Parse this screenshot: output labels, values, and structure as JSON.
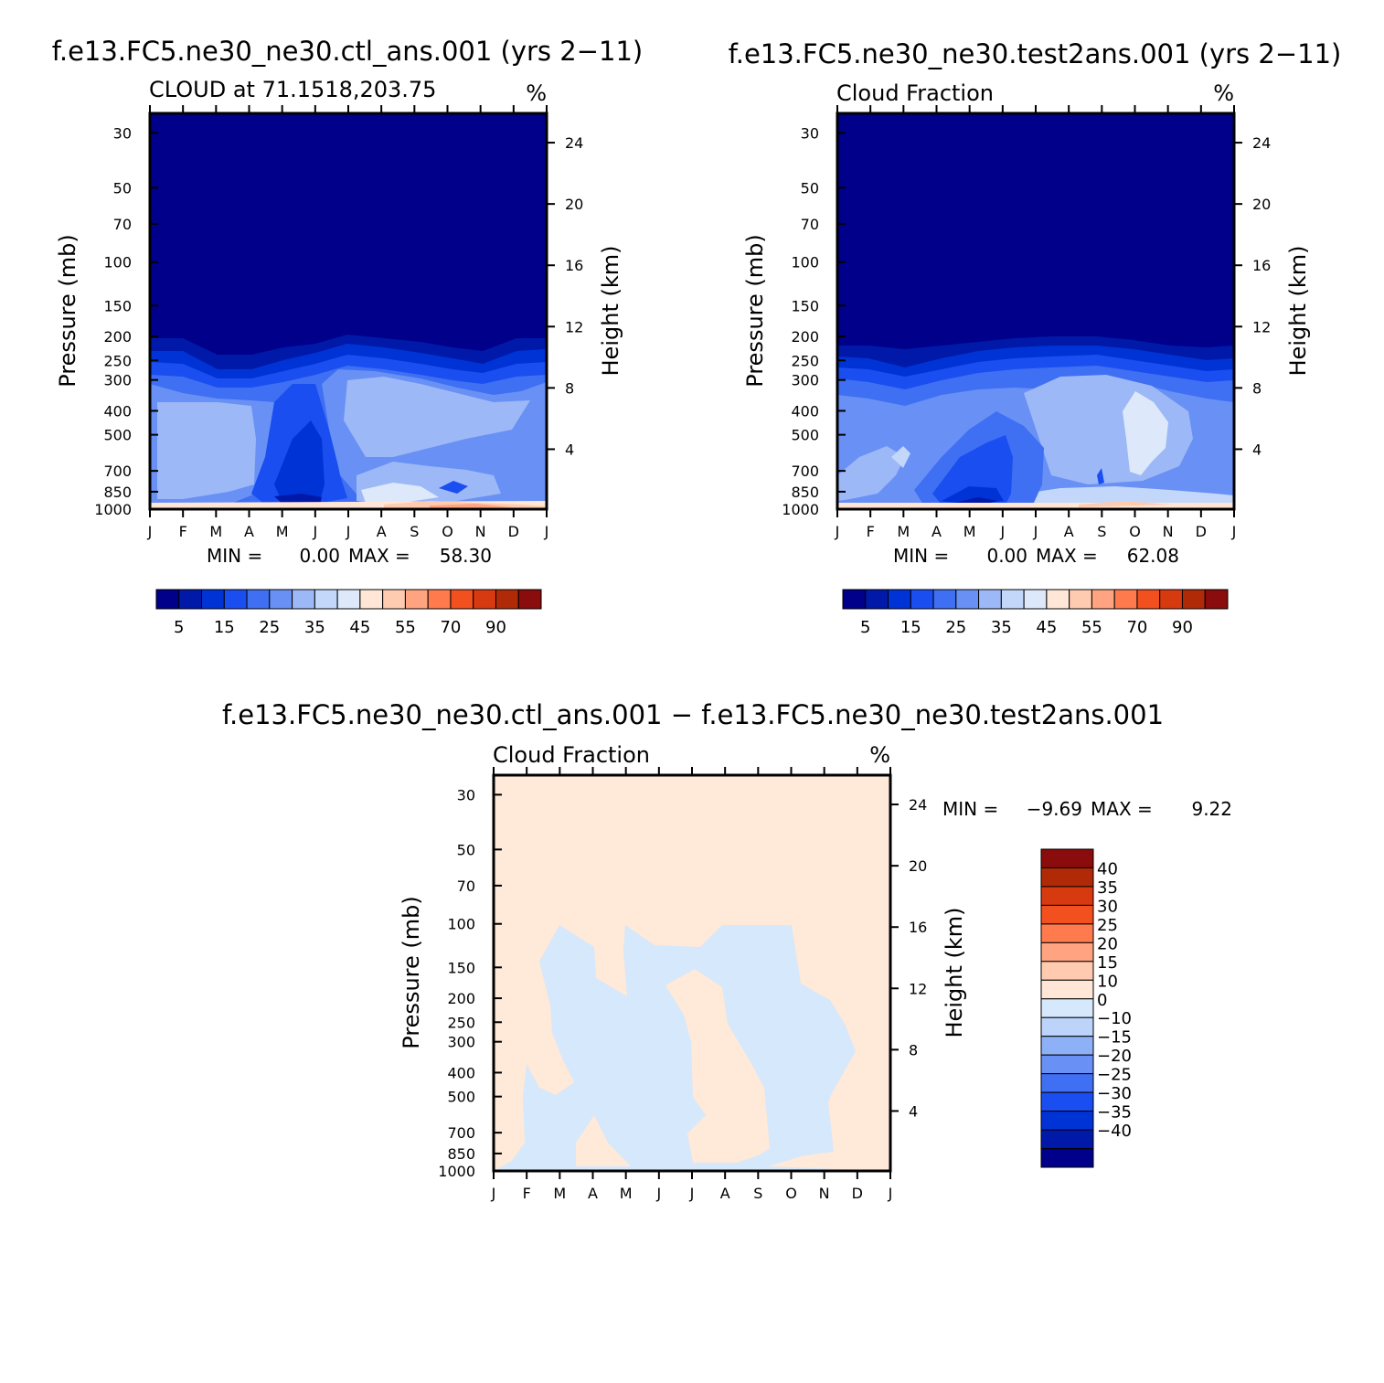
{
  "chart_data": [
    {
      "type": "heatmap",
      "title": "f.e13.FC5.ne30_ne30.ctl_ans.001 (yrs 2−11)",
      "subtitle_left": "CLOUD at 71.1518,203.75",
      "units": "%",
      "xlabel": "",
      "ylabel": "Pressure (mb)",
      "ylabel_right": "Height (km)",
      "x_ticks": [
        "J",
        "F",
        "M",
        "A",
        "M",
        "J",
        "J",
        "A",
        "S",
        "O",
        "N",
        "D",
        "J"
      ],
      "y_ticks": [
        "30",
        "50",
        "70",
        "100",
        "150",
        "200",
        "250",
        "300",
        "400",
        "500",
        "700",
        "850",
        "1000"
      ],
      "y_ticks_right": [
        "24",
        "20",
        "16",
        "12",
        "8",
        "4"
      ],
      "min_label": "MIN =",
      "min_value": "0.00",
      "max_label": "MAX =",
      "max_value": "58.30",
      "colorbar_labels": [
        "5",
        "15",
        "25",
        "35",
        "45",
        "55",
        "70",
        "90"
      ],
      "colorbar_colors": [
        "#00008a",
        "#0019a8",
        "#0033d6",
        "#1a4ef0",
        "#3f6ff2",
        "#6890f5",
        "#9db8f7",
        "#c2d7fa",
        "#dde9fb",
        "#ffe6d6",
        "#ffcbb0",
        "#ffa380",
        "#ff7a4d",
        "#f2501e",
        "#d83a10",
        "#b02a08",
        "#8a0c0c"
      ]
    },
    {
      "type": "heatmap",
      "title": "f.e13.FC5.ne30_ne30.test2ans.001 (yrs 2−11)",
      "subtitle_left": "Cloud Fraction",
      "units": "%",
      "xlabel": "",
      "ylabel": "Pressure (mb)",
      "ylabel_right": "Height (km)",
      "x_ticks": [
        "J",
        "F",
        "M",
        "A",
        "M",
        "J",
        "J",
        "A",
        "S",
        "O",
        "N",
        "D",
        "J"
      ],
      "y_ticks": [
        "30",
        "50",
        "70",
        "100",
        "150",
        "200",
        "250",
        "300",
        "400",
        "500",
        "700",
        "850",
        "1000"
      ],
      "y_ticks_right": [
        "24",
        "20",
        "16",
        "12",
        "8",
        "4"
      ],
      "min_label": "MIN =",
      "min_value": "0.00",
      "max_label": "MAX =",
      "max_value": "62.08",
      "colorbar_labels": [
        "5",
        "15",
        "25",
        "35",
        "45",
        "55",
        "70",
        "90"
      ],
      "colorbar_colors": [
        "#00008a",
        "#0019a8",
        "#0033d6",
        "#1a4ef0",
        "#3f6ff2",
        "#6890f5",
        "#9db8f7",
        "#c2d7fa",
        "#dde9fb",
        "#ffe6d6",
        "#ffcbb0",
        "#ffa380",
        "#ff7a4d",
        "#f2501e",
        "#d83a10",
        "#b02a08",
        "#8a0c0c"
      ]
    },
    {
      "type": "heatmap",
      "title": "f.e13.FC5.ne30_ne30.ctl_ans.001 − f.e13.FC5.ne30_ne30.test2ans.001",
      "subtitle_left": "Cloud Fraction",
      "units": "%",
      "xlabel": "",
      "ylabel": "Pressure (mb)",
      "ylabel_right": "Height (km)",
      "x_ticks": [
        "J",
        "F",
        "M",
        "A",
        "M",
        "J",
        "J",
        "A",
        "S",
        "O",
        "N",
        "D",
        "J"
      ],
      "y_ticks": [
        "30",
        "50",
        "70",
        "100",
        "150",
        "200",
        "250",
        "300",
        "400",
        "500",
        "700",
        "850",
        "1000"
      ],
      "y_ticks_right": [
        "24",
        "20",
        "16",
        "12",
        "8",
        "4"
      ],
      "min_label": "MIN =",
      "min_value": "−9.69",
      "max_label": "MAX =",
      "max_value": "9.22",
      "colorbar_labels": [
        "40",
        "35",
        "30",
        "25",
        "20",
        "15",
        "10",
        "0",
        "−10",
        "−15",
        "−20",
        "−25",
        "−30",
        "−35",
        "−40"
      ],
      "colorbar_colors": [
        "#8a0c0c",
        "#b02a08",
        "#d83a10",
        "#f2501e",
        "#ff7a4d",
        "#ffa380",
        "#ffcbb0",
        "#ffe6d6",
        "#d6e8fc",
        "#bcd3fa",
        "#8db0f6",
        "#6890f5",
        "#3f6ff2",
        "#1a4ef0",
        "#0033d6",
        "#0019a8",
        "#00008a"
      ]
    }
  ],
  "colors": {
    "c1": "#00008a",
    "c2": "#0019a8",
    "c3": "#0033d6",
    "c4": "#1a4ef0",
    "c5": "#3f6ff2",
    "c6": "#6890f5",
    "c7": "#9db8f7",
    "c8": "#c2d7fa",
    "c9": "#dde9fb",
    "w1": "#ffe6d6",
    "w2": "#ffcbb0",
    "w3": "#ffa380",
    "neg": "#d6e8fc",
    "pos": "#ffe9d8"
  }
}
